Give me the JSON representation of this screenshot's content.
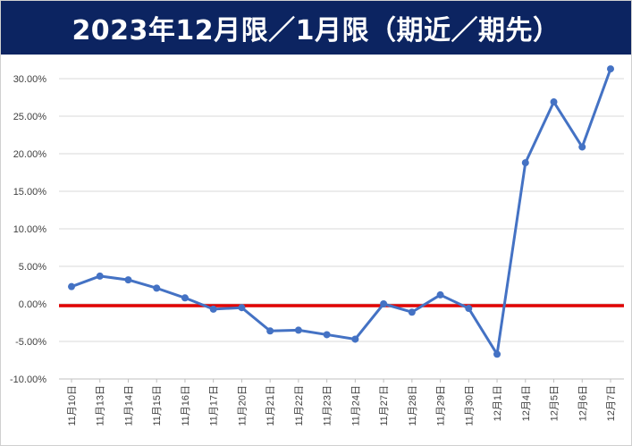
{
  "header": {
    "title": "2023年12月限／1月限（期近／期先）"
  },
  "colors": {
    "banner": "#0c2461",
    "line": "#4472c4",
    "zero_line": "#e00000",
    "grid": "#d9d9d9"
  },
  "chart_data": {
    "type": "line",
    "title": "2023年12月限／1月限（期近／期先）",
    "xlabel": "",
    "ylabel": "",
    "ylim": [
      -0.1,
      0.325
    ],
    "grid": true,
    "legend": "none",
    "yticks": [
      "30.00%",
      "25.00%",
      "20.00%",
      "15.00%",
      "10.00%",
      "5.00%",
      "0.00%",
      "-5.00%",
      "-10.00%"
    ],
    "ytick_values": [
      0.3,
      0.25,
      0.2,
      0.15,
      0.1,
      0.05,
      0.0,
      -0.05,
      -0.1
    ],
    "reference_line": 0.0,
    "categories": [
      "11月10日",
      "11月13日",
      "11月14日",
      "11月15日",
      "11月16日",
      "11月17日",
      "11月20日",
      "11月21日",
      "11月22日",
      "11月23日",
      "11月24日",
      "11月27日",
      "11月28日",
      "11月29日",
      "11月30日",
      "12月1日",
      "12月4日",
      "12月5日",
      "12月6日",
      "12月7日"
    ],
    "series": [
      {
        "values": [
          0.023,
          0.037,
          0.032,
          0.021,
          0.008,
          -0.007,
          -0.005,
          -0.036,
          -0.035,
          -0.041,
          -0.047,
          0.0,
          -0.011,
          0.012,
          -0.006,
          -0.067,
          0.188,
          0.269,
          0.209,
          0.313
        ]
      }
    ]
  }
}
